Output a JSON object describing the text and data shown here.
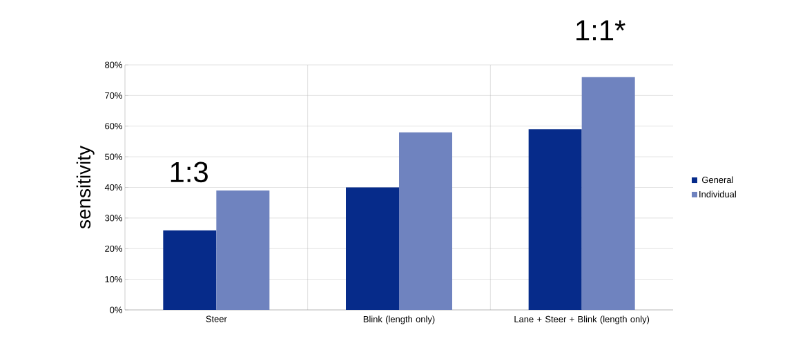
{
  "chart_data": {
    "type": "bar",
    "ylabel": "sensitivity",
    "categories": [
      "Steer",
      "Blink (length only)",
      "Lane + Steer + Blink (length only)"
    ],
    "series": [
      {
        "name": "General",
        "color": "#062b8a",
        "values": [
          26,
          40,
          59
        ]
      },
      {
        "name": "Individual",
        "color": "#6f83bf",
        "values": [
          39,
          58,
          76
        ]
      }
    ],
    "ylim": [
      0,
      80
    ],
    "yticks": [
      {
        "value": 0,
        "label": "0%"
      },
      {
        "value": 10,
        "label": "10%"
      },
      {
        "value": 20,
        "label": "20%"
      },
      {
        "value": 30,
        "label": "30%"
      },
      {
        "value": 40,
        "label": "40%"
      },
      {
        "value": 50,
        "label": "50%"
      },
      {
        "value": 60,
        "label": "60%"
      },
      {
        "value": 70,
        "label": "70%"
      },
      {
        "value": 80,
        "label": "80%"
      }
    ],
    "annotations": [
      "1:3",
      "1:1*"
    ],
    "grid": true,
    "legend": "right"
  }
}
